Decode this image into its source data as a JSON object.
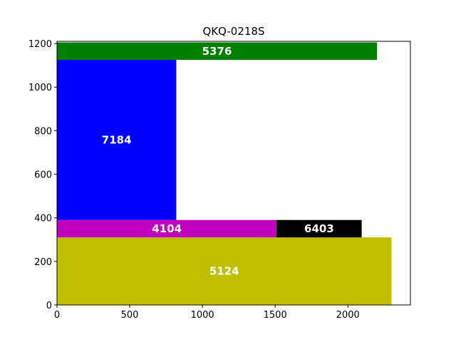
{
  "chart_data": {
    "type": "rectangles",
    "title": "QKQ-0218S",
    "xlabel": "",
    "ylabel": "",
    "xlim": [
      0,
      2430
    ],
    "ylim": [
      0,
      1210
    ],
    "x_ticks": [
      0,
      500,
      1000,
      1500,
      2000
    ],
    "y_ticks": [
      0,
      200,
      400,
      600,
      800,
      1000,
      1200
    ],
    "grid": false,
    "rectangles": [
      {
        "label": "5124",
        "x0": 0,
        "x1": 2300,
        "y0": 0,
        "y1": 310,
        "color": "#bfbf00"
      },
      {
        "label": "4104",
        "x0": 0,
        "x1": 1510,
        "y0": 310,
        "y1": 390,
        "color": "#bf00bf"
      },
      {
        "label": "6403",
        "x0": 1510,
        "x1": 2095,
        "y0": 310,
        "y1": 390,
        "color": "#000000"
      },
      {
        "label": "7184",
        "x0": 0,
        "x1": 820,
        "y0": 390,
        "y1": 1125,
        "color": "#0000ff"
      },
      {
        "label": "5376",
        "x0": 0,
        "x1": 2200,
        "y0": 1125,
        "y1": 1205,
        "color": "#008000"
      }
    ]
  }
}
